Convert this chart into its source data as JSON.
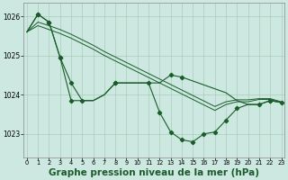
{
  "background_color": "#cce8e0",
  "grid_color": "#aaccbb",
  "line_color": "#1a5c2a",
  "xlabel": "Graphe pression niveau de la mer (hPa)",
  "xlabel_fontsize": 7.5,
  "yticks": [
    1023,
    1024,
    1025,
    1026
  ],
  "xticks": [
    0,
    1,
    2,
    3,
    4,
    5,
    6,
    7,
    8,
    9,
    10,
    11,
    12,
    13,
    14,
    15,
    16,
    17,
    18,
    19,
    20,
    21,
    22,
    23
  ],
  "ylim": [
    1022.4,
    1026.35
  ],
  "xlim": [
    -0.3,
    23.3
  ],
  "series_jagged": {
    "x": [
      0,
      1,
      2,
      3,
      4,
      5,
      6,
      7,
      8,
      9,
      10,
      11,
      12,
      13,
      14,
      15,
      16,
      17,
      18,
      19,
      20,
      21,
      22,
      23
    ],
    "y": [
      1025.6,
      1026.05,
      1025.85,
      1024.95,
      1023.85,
      1023.85,
      1023.85,
      1024.0,
      1024.3,
      1024.3,
      1024.3,
      1024.3,
      1023.55,
      1023.05,
      1022.85,
      1022.8,
      1023.0,
      1023.05,
      1023.35,
      1023.65,
      1023.75,
      1023.75,
      1023.85,
      1023.8
    ],
    "markers": [
      false,
      true,
      true,
      true,
      true,
      true,
      false,
      false,
      true,
      false,
      false,
      true,
      true,
      true,
      true,
      true,
      true,
      true,
      true,
      true,
      false,
      true,
      true,
      true
    ]
  },
  "series_upper_jagged": {
    "x": [
      0,
      1,
      2,
      3,
      4,
      5,
      6,
      7,
      8,
      9,
      10,
      11,
      12,
      13,
      14,
      15,
      16,
      17,
      18,
      19,
      20,
      21,
      22,
      23
    ],
    "y": [
      1025.6,
      1026.05,
      1025.85,
      1024.95,
      1024.3,
      1023.85,
      1023.85,
      1024.0,
      1024.3,
      1024.3,
      1024.3,
      1024.3,
      1024.3,
      1024.5,
      1024.45,
      1024.35,
      1024.25,
      1024.15,
      1024.05,
      1023.85,
      1023.75,
      1023.75,
      1023.85,
      1023.8
    ],
    "markers": [
      false,
      true,
      true,
      true,
      true,
      false,
      false,
      false,
      true,
      false,
      false,
      false,
      false,
      true,
      true,
      false,
      false,
      false,
      false,
      false,
      false,
      false,
      true,
      false
    ]
  },
  "series_linear1": [
    1025.6,
    1025.76,
    1025.66,
    1025.56,
    1025.44,
    1025.3,
    1025.16,
    1025.0,
    1024.86,
    1024.72,
    1024.58,
    1024.44,
    1024.3,
    1024.16,
    1024.02,
    1023.88,
    1023.74,
    1023.6,
    1023.75,
    1023.82,
    1023.82,
    1023.88,
    1023.88,
    1023.8
  ],
  "series_linear2": [
    1025.6,
    1025.85,
    1025.76,
    1025.66,
    1025.54,
    1025.4,
    1025.26,
    1025.1,
    1024.96,
    1024.82,
    1024.68,
    1024.54,
    1024.4,
    1024.26,
    1024.12,
    1023.98,
    1023.84,
    1023.7,
    1023.82,
    1023.87,
    1023.87,
    1023.9,
    1023.9,
    1023.82
  ]
}
